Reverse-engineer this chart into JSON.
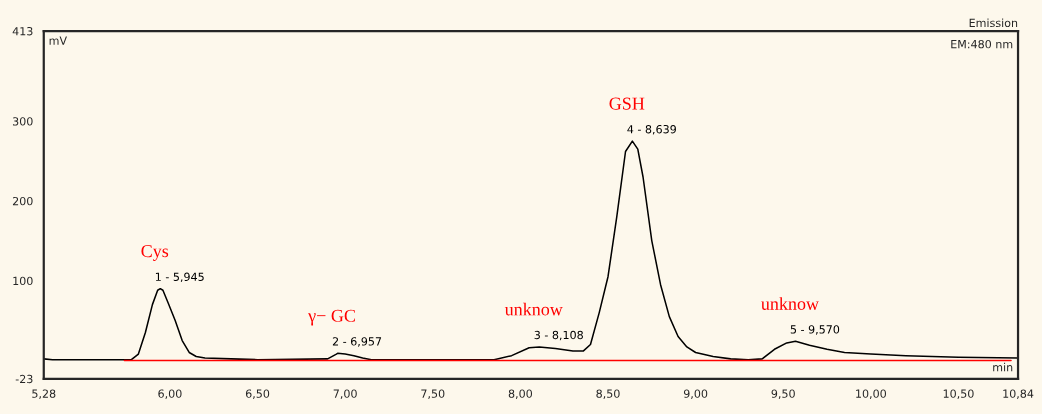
{
  "chart_data": {
    "type": "line",
    "title": "Emission",
    "xlabel": "min",
    "ylabel": "mV",
    "xlim": [
      5.28,
      10.84
    ],
    "ylim": [
      -23,
      413
    ],
    "xticks": [
      {
        "value": 5.28,
        "label": "5,28"
      },
      {
        "value": 6.0,
        "label": "6,00"
      },
      {
        "value": 6.5,
        "label": "6,50"
      },
      {
        "value": 7.0,
        "label": "7,00"
      },
      {
        "value": 7.5,
        "label": "7,50"
      },
      {
        "value": 8.0,
        "label": "8,00"
      },
      {
        "value": 8.5,
        "label": "8,50"
      },
      {
        "value": 9.0,
        "label": "9,00"
      },
      {
        "value": 9.5,
        "label": "9,50"
      },
      {
        "value": 10.0,
        "label": "10,00"
      },
      {
        "value": 10.5,
        "label": "10,50"
      },
      {
        "value": 10.84,
        "label": "10,84"
      }
    ],
    "yticks": [
      -23,
      100,
      200,
      300,
      413
    ],
    "grid": false,
    "legend": false,
    "series": [
      {
        "color": "#000000",
        "x": [
          5.28,
          5.33,
          5.5,
          5.78,
          5.82,
          5.86,
          5.9,
          5.93,
          5.945,
          5.96,
          5.99,
          6.03,
          6.07,
          6.11,
          6.15,
          6.2,
          6.35,
          6.5,
          6.9,
          6.95,
          6.957,
          7.0,
          7.05,
          7.1,
          7.15,
          7.7,
          7.85,
          7.95,
          8.05,
          8.108,
          8.2,
          8.3,
          8.36,
          8.4,
          8.45,
          8.5,
          8.55,
          8.6,
          8.639,
          8.67,
          8.7,
          8.75,
          8.8,
          8.85,
          8.9,
          8.95,
          9.0,
          9.1,
          9.2,
          9.3,
          9.38,
          9.45,
          9.52,
          9.57,
          9.65,
          9.75,
          9.85,
          10.0,
          10.2,
          10.5,
          10.84
        ],
        "values": [
          2,
          1,
          1,
          1,
          8,
          35,
          70,
          88,
          90,
          88,
          72,
          50,
          25,
          10,
          5,
          3,
          2,
          1,
          2,
          8,
          9,
          8,
          6,
          3,
          1,
          1,
          1,
          6,
          16,
          17,
          15,
          12,
          12,
          20,
          60,
          105,
          180,
          262,
          275,
          265,
          230,
          150,
          95,
          55,
          30,
          17,
          10,
          5,
          2,
          1,
          2,
          14,
          22,
          24,
          19,
          14,
          10,
          8,
          6,
          4,
          3
        ]
      },
      {
        "color": "#ff0000",
        "x": [
          5.74,
          10.8
        ],
        "values": [
          0,
          0
        ]
      }
    ],
    "annotations": [
      "EM:480 nm",
      {
        "text": "Cys",
        "x": 5.945,
        "y": 90
      },
      {
        "text": "γ− GC",
        "x": 6.957,
        "y": 9
      },
      {
        "text": "unknow",
        "x": 8.108,
        "y": 17
      },
      {
        "text": "GSH",
        "x": 8.639,
        "y": 275
      },
      {
        "text": "unknow",
        "x": 9.57,
        "y": 24
      },
      {
        "text": "1 - 5,945",
        "x": 5.945,
        "y": 90
      },
      {
        "text": "2 - 6,957",
        "x": 6.957,
        "y": 9
      },
      {
        "text": "3 - 8,108",
        "x": 8.108,
        "y": 17
      },
      {
        "text": "4 - 8,639",
        "x": 8.639,
        "y": 275
      },
      {
        "text": "5 - 9,570",
        "x": 9.57,
        "y": 24
      }
    ]
  }
}
